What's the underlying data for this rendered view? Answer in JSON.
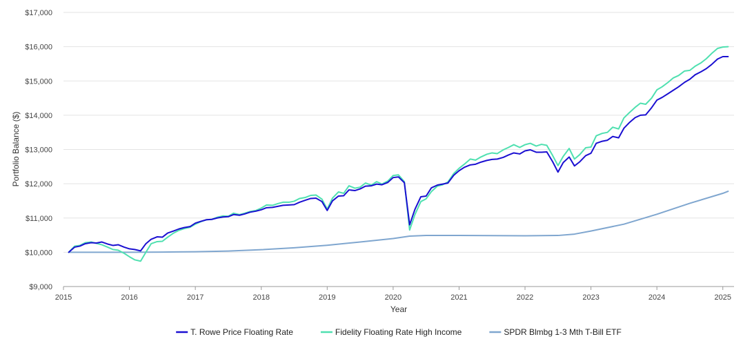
{
  "chart_data": {
    "type": "line",
    "xlabel": "Year",
    "ylabel": "Portfolio Balance ($)",
    "xlim": [
      2015.0,
      2025.17
    ],
    "ylim": [
      9000,
      17000
    ],
    "x_ticks": [
      2015,
      2016,
      2017,
      2018,
      2019,
      2020,
      2021,
      2022,
      2023,
      2024,
      2025
    ],
    "x_tick_labels": [
      "2015",
      "2016",
      "2017",
      "2018",
      "2019",
      "2020",
      "2021",
      "2022",
      "2023",
      "2024",
      "2025"
    ],
    "y_ticks": [
      9000,
      10000,
      11000,
      12000,
      13000,
      14000,
      15000,
      16000,
      17000
    ],
    "y_tick_labels": [
      "$9,000",
      "$10,000",
      "$11,000",
      "$12,000",
      "$13,000",
      "$14,000",
      "$15,000",
      "$16,000",
      "$17,000"
    ],
    "grid": true,
    "legend_position": "bottom",
    "series": [
      {
        "name": "T. Rowe Price Floating Rate",
        "color": "#1a0fd1",
        "points": [
          [
            2015.08,
            10000
          ],
          [
            2015.17,
            10150
          ],
          [
            2015.25,
            10180
          ],
          [
            2015.33,
            10250
          ],
          [
            2015.42,
            10280
          ],
          [
            2015.5,
            10270
          ],
          [
            2015.58,
            10300
          ],
          [
            2015.67,
            10240
          ],
          [
            2015.75,
            10200
          ],
          [
            2015.83,
            10220
          ],
          [
            2015.92,
            10150
          ],
          [
            2016.0,
            10100
          ],
          [
            2016.08,
            10080
          ],
          [
            2016.17,
            10040
          ],
          [
            2016.25,
            10250
          ],
          [
            2016.33,
            10380
          ],
          [
            2016.42,
            10450
          ],
          [
            2016.5,
            10440
          ],
          [
            2016.58,
            10560
          ],
          [
            2016.67,
            10620
          ],
          [
            2016.75,
            10680
          ],
          [
            2016.83,
            10720
          ],
          [
            2016.92,
            10750
          ],
          [
            2017.0,
            10850
          ],
          [
            2017.08,
            10900
          ],
          [
            2017.17,
            10950
          ],
          [
            2017.25,
            10960
          ],
          [
            2017.33,
            11000
          ],
          [
            2017.42,
            11030
          ],
          [
            2017.5,
            11040
          ],
          [
            2017.58,
            11100
          ],
          [
            2017.67,
            11080
          ],
          [
            2017.75,
            11120
          ],
          [
            2017.83,
            11170
          ],
          [
            2017.92,
            11200
          ],
          [
            2018.0,
            11240
          ],
          [
            2018.08,
            11300
          ],
          [
            2018.17,
            11310
          ],
          [
            2018.25,
            11340
          ],
          [
            2018.33,
            11370
          ],
          [
            2018.42,
            11380
          ],
          [
            2018.5,
            11390
          ],
          [
            2018.58,
            11460
          ],
          [
            2018.67,
            11520
          ],
          [
            2018.75,
            11570
          ],
          [
            2018.83,
            11580
          ],
          [
            2018.92,
            11480
          ],
          [
            2019.0,
            11220
          ],
          [
            2019.08,
            11500
          ],
          [
            2019.17,
            11640
          ],
          [
            2019.25,
            11650
          ],
          [
            2019.33,
            11820
          ],
          [
            2019.42,
            11800
          ],
          [
            2019.5,
            11850
          ],
          [
            2019.58,
            11930
          ],
          [
            2019.67,
            11940
          ],
          [
            2019.75,
            11990
          ],
          [
            2019.83,
            11970
          ],
          [
            2019.92,
            12040
          ],
          [
            2020.0,
            12180
          ],
          [
            2020.08,
            12200
          ],
          [
            2020.17,
            12030
          ],
          [
            2020.25,
            10800
          ],
          [
            2020.33,
            11250
          ],
          [
            2020.42,
            11620
          ],
          [
            2020.5,
            11640
          ],
          [
            2020.58,
            11880
          ],
          [
            2020.67,
            11960
          ],
          [
            2020.75,
            11990
          ],
          [
            2020.83,
            12020
          ],
          [
            2020.92,
            12250
          ],
          [
            2021.0,
            12380
          ],
          [
            2021.08,
            12480
          ],
          [
            2021.17,
            12550
          ],
          [
            2021.25,
            12570
          ],
          [
            2021.33,
            12630
          ],
          [
            2021.42,
            12680
          ],
          [
            2021.5,
            12710
          ],
          [
            2021.58,
            12720
          ],
          [
            2021.67,
            12770
          ],
          [
            2021.75,
            12840
          ],
          [
            2021.83,
            12900
          ],
          [
            2021.92,
            12870
          ],
          [
            2022.0,
            12960
          ],
          [
            2022.08,
            12990
          ],
          [
            2022.17,
            12920
          ],
          [
            2022.25,
            12920
          ],
          [
            2022.33,
            12930
          ],
          [
            2022.42,
            12640
          ],
          [
            2022.5,
            12340
          ],
          [
            2022.58,
            12620
          ],
          [
            2022.67,
            12780
          ],
          [
            2022.75,
            12520
          ],
          [
            2022.83,
            12640
          ],
          [
            2022.92,
            12820
          ],
          [
            2023.0,
            12890
          ],
          [
            2023.08,
            13180
          ],
          [
            2023.17,
            13240
          ],
          [
            2023.25,
            13270
          ],
          [
            2023.33,
            13380
          ],
          [
            2023.42,
            13340
          ],
          [
            2023.5,
            13620
          ],
          [
            2023.58,
            13780
          ],
          [
            2023.67,
            13930
          ],
          [
            2023.75,
            14000
          ],
          [
            2023.83,
            14010
          ],
          [
            2023.92,
            14220
          ],
          [
            2024.0,
            14440
          ],
          [
            2024.08,
            14520
          ],
          [
            2024.17,
            14630
          ],
          [
            2024.25,
            14730
          ],
          [
            2024.33,
            14830
          ],
          [
            2024.42,
            14960
          ],
          [
            2024.5,
            15050
          ],
          [
            2024.58,
            15180
          ],
          [
            2024.67,
            15270
          ],
          [
            2024.75,
            15360
          ],
          [
            2024.83,
            15480
          ],
          [
            2024.92,
            15640
          ],
          [
            2025.0,
            15710
          ],
          [
            2025.08,
            15710
          ]
        ]
      },
      {
        "name": "Fidelity Floating Rate High Income",
        "color": "#4fe0b0",
        "points": [
          [
            2015.08,
            10000
          ],
          [
            2015.17,
            10180
          ],
          [
            2015.25,
            10200
          ],
          [
            2015.33,
            10280
          ],
          [
            2015.42,
            10300
          ],
          [
            2015.5,
            10260
          ],
          [
            2015.58,
            10220
          ],
          [
            2015.67,
            10150
          ],
          [
            2015.75,
            10080
          ],
          [
            2015.83,
            10060
          ],
          [
            2015.92,
            9970
          ],
          [
            2016.0,
            9870
          ],
          [
            2016.08,
            9780
          ],
          [
            2016.17,
            9740
          ],
          [
            2016.25,
            10000
          ],
          [
            2016.33,
            10250
          ],
          [
            2016.42,
            10310
          ],
          [
            2016.5,
            10320
          ],
          [
            2016.58,
            10440
          ],
          [
            2016.67,
            10560
          ],
          [
            2016.75,
            10640
          ],
          [
            2016.83,
            10690
          ],
          [
            2016.92,
            10730
          ],
          [
            2017.0,
            10820
          ],
          [
            2017.08,
            10890
          ],
          [
            2017.17,
            10950
          ],
          [
            2017.25,
            10960
          ],
          [
            2017.33,
            11020
          ],
          [
            2017.42,
            11060
          ],
          [
            2017.5,
            11050
          ],
          [
            2017.58,
            11140
          ],
          [
            2017.67,
            11100
          ],
          [
            2017.75,
            11140
          ],
          [
            2017.83,
            11190
          ],
          [
            2017.92,
            11220
          ],
          [
            2018.0,
            11290
          ],
          [
            2018.08,
            11380
          ],
          [
            2018.17,
            11370
          ],
          [
            2018.25,
            11420
          ],
          [
            2018.33,
            11460
          ],
          [
            2018.42,
            11460
          ],
          [
            2018.5,
            11490
          ],
          [
            2018.58,
            11570
          ],
          [
            2018.67,
            11600
          ],
          [
            2018.75,
            11660
          ],
          [
            2018.83,
            11670
          ],
          [
            2018.92,
            11550
          ],
          [
            2019.0,
            11260
          ],
          [
            2019.08,
            11580
          ],
          [
            2019.17,
            11760
          ],
          [
            2019.25,
            11720
          ],
          [
            2019.33,
            11940
          ],
          [
            2019.42,
            11870
          ],
          [
            2019.5,
            11900
          ],
          [
            2019.58,
            12020
          ],
          [
            2019.67,
            11960
          ],
          [
            2019.75,
            12060
          ],
          [
            2019.83,
            11990
          ],
          [
            2019.92,
            12080
          ],
          [
            2020.0,
            12240
          ],
          [
            2020.08,
            12260
          ],
          [
            2020.17,
            12060
          ],
          [
            2020.25,
            10650
          ],
          [
            2020.33,
            11100
          ],
          [
            2020.42,
            11480
          ],
          [
            2020.5,
            11560
          ],
          [
            2020.58,
            11770
          ],
          [
            2020.67,
            11930
          ],
          [
            2020.75,
            11970
          ],
          [
            2020.83,
            12050
          ],
          [
            2020.92,
            12300
          ],
          [
            2021.0,
            12450
          ],
          [
            2021.08,
            12570
          ],
          [
            2021.17,
            12720
          ],
          [
            2021.25,
            12690
          ],
          [
            2021.33,
            12780
          ],
          [
            2021.42,
            12860
          ],
          [
            2021.5,
            12900
          ],
          [
            2021.58,
            12880
          ],
          [
            2021.67,
            12990
          ],
          [
            2021.75,
            13060
          ],
          [
            2021.83,
            13140
          ],
          [
            2021.92,
            13060
          ],
          [
            2022.0,
            13140
          ],
          [
            2022.08,
            13180
          ],
          [
            2022.17,
            13100
          ],
          [
            2022.25,
            13150
          ],
          [
            2022.33,
            13120
          ],
          [
            2022.42,
            12820
          ],
          [
            2022.5,
            12530
          ],
          [
            2022.58,
            12800
          ],
          [
            2022.67,
            13030
          ],
          [
            2022.75,
            12720
          ],
          [
            2022.83,
            12850
          ],
          [
            2022.92,
            13050
          ],
          [
            2023.0,
            13070
          ],
          [
            2023.08,
            13400
          ],
          [
            2023.17,
            13470
          ],
          [
            2023.25,
            13500
          ],
          [
            2023.33,
            13650
          ],
          [
            2023.42,
            13600
          ],
          [
            2023.5,
            13920
          ],
          [
            2023.58,
            14070
          ],
          [
            2023.67,
            14230
          ],
          [
            2023.75,
            14350
          ],
          [
            2023.83,
            14320
          ],
          [
            2023.92,
            14500
          ],
          [
            2024.0,
            14740
          ],
          [
            2024.08,
            14830
          ],
          [
            2024.17,
            14960
          ],
          [
            2024.25,
            15090
          ],
          [
            2024.33,
            15160
          ],
          [
            2024.42,
            15290
          ],
          [
            2024.5,
            15310
          ],
          [
            2024.58,
            15430
          ],
          [
            2024.67,
            15530
          ],
          [
            2024.75,
            15650
          ],
          [
            2024.83,
            15800
          ],
          [
            2024.92,
            15950
          ],
          [
            2025.0,
            15990
          ],
          [
            2025.08,
            16000
          ]
        ]
      },
      {
        "name": "SPDR Blmbg 1-3 Mth T-Bill ETF",
        "color": "#7fa6cf",
        "points": [
          [
            2015.08,
            10000
          ],
          [
            2015.5,
            10000
          ],
          [
            2016.0,
            10000
          ],
          [
            2016.5,
            10005
          ],
          [
            2017.0,
            10015
          ],
          [
            2017.5,
            10035
          ],
          [
            2018.0,
            10075
          ],
          [
            2018.5,
            10130
          ],
          [
            2019.0,
            10205
          ],
          [
            2019.5,
            10300
          ],
          [
            2020.0,
            10400
          ],
          [
            2020.25,
            10470
          ],
          [
            2020.5,
            10490
          ],
          [
            2021.0,
            10490
          ],
          [
            2021.5,
            10485
          ],
          [
            2022.0,
            10480
          ],
          [
            2022.5,
            10490
          ],
          [
            2022.75,
            10530
          ],
          [
            2023.0,
            10620
          ],
          [
            2023.5,
            10820
          ],
          [
            2024.0,
            11110
          ],
          [
            2024.5,
            11430
          ],
          [
            2025.0,
            11720
          ],
          [
            2025.08,
            11780
          ]
        ]
      }
    ]
  }
}
